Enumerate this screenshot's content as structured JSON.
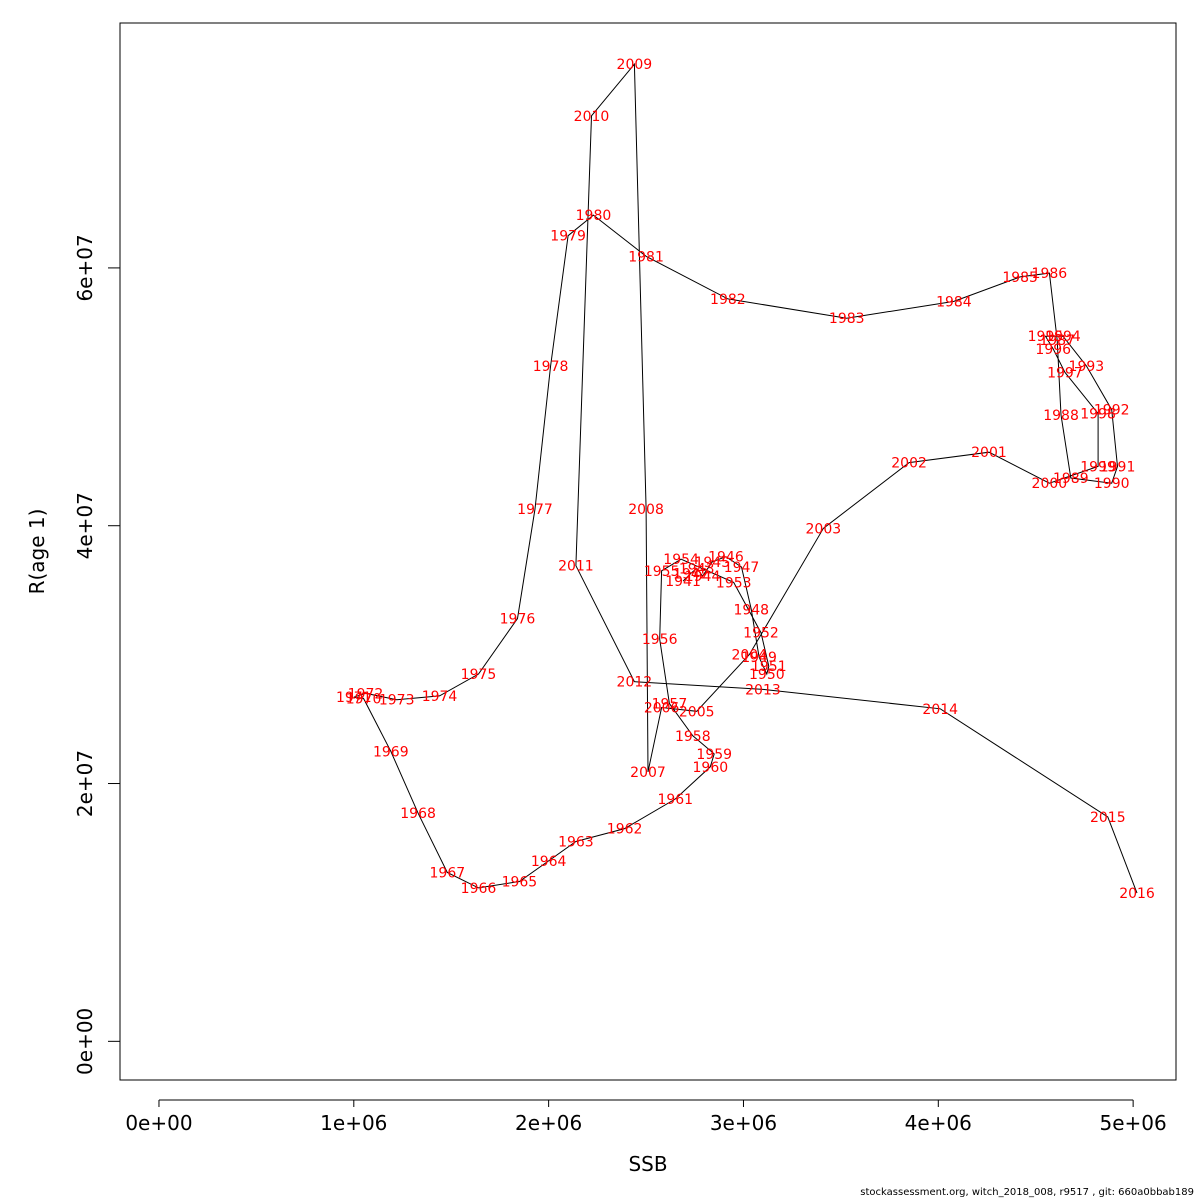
{
  "colors": {
    "label": "#ff0000",
    "line": "#000000",
    "axis": "#000000"
  },
  "footer": "stockassessment.org, witch_2018_008, r9517 , git: 660a0bbab189",
  "chart_data": {
    "type": "line",
    "title": "",
    "xlabel": "SSB",
    "ylabel": "R(age 1)",
    "xlim": [
      -200000,
      5220000
    ],
    "ylim": [
      -3000000,
      79000000
    ],
    "x_ticks": [
      0,
      1000000,
      2000000,
      3000000,
      4000000,
      5000000
    ],
    "x_tick_labels": [
      "0e+00",
      "1e+06",
      "2e+06",
      "3e+06",
      "4e+06",
      "5e+06"
    ],
    "y_ticks": [
      0,
      20000000,
      40000000,
      60000000
    ],
    "y_tick_labels": [
      "0e+00",
      "2e+07",
      "4e+07",
      "6e+07"
    ],
    "label_color": "#ff0000",
    "points": [
      {
        "year": "1941",
        "ssb": 2690000,
        "rec": 35700000
      },
      {
        "year": "1942",
        "ssb": 2730000,
        "rec": 36300000
      },
      {
        "year": "1943",
        "ssb": 2760000,
        "rec": 36700000
      },
      {
        "year": "1944",
        "ssb": 2790000,
        "rec": 36100000
      },
      {
        "year": "1945",
        "ssb": 2840000,
        "rec": 37200000
      },
      {
        "year": "1946",
        "ssb": 2910000,
        "rec": 37600000
      },
      {
        "year": "1947",
        "ssb": 2990000,
        "rec": 36800000
      },
      {
        "year": "1948",
        "ssb": 3040000,
        "rec": 33500000
      },
      {
        "year": "1949",
        "ssb": 3080000,
        "rec": 29800000
      },
      {
        "year": "1950",
        "ssb": 3120000,
        "rec": 28500000
      },
      {
        "year": "1951",
        "ssb": 3130000,
        "rec": 29100000
      },
      {
        "year": "1952",
        "ssb": 3090000,
        "rec": 31700000
      },
      {
        "year": "1953",
        "ssb": 2950000,
        "rec": 35600000
      },
      {
        "year": "1954",
        "ssb": 2680000,
        "rec": 37400000
      },
      {
        "year": "1955",
        "ssb": 2580000,
        "rec": 36500000
      },
      {
        "year": "1956",
        "ssb": 2570000,
        "rec": 31200000
      },
      {
        "year": "1957",
        "ssb": 2620000,
        "rec": 26200000
      },
      {
        "year": "1958",
        "ssb": 2740000,
        "rec": 23700000
      },
      {
        "year": "1959",
        "ssb": 2850000,
        "rec": 22300000
      },
      {
        "year": "1960",
        "ssb": 2830000,
        "rec": 21300000
      },
      {
        "year": "1961",
        "ssb": 2650000,
        "rec": 18800000
      },
      {
        "year": "1962",
        "ssb": 2390000,
        "rec": 16500000
      },
      {
        "year": "1963",
        "ssb": 2140000,
        "rec": 15500000
      },
      {
        "year": "1964",
        "ssb": 2000000,
        "rec": 14000000
      },
      {
        "year": "1965",
        "ssb": 1850000,
        "rec": 12400000
      },
      {
        "year": "1966",
        "ssb": 1640000,
        "rec": 11900000
      },
      {
        "year": "1967",
        "ssb": 1480000,
        "rec": 13100000
      },
      {
        "year": "1968",
        "ssb": 1330000,
        "rec": 17700000
      },
      {
        "year": "1969",
        "ssb": 1190000,
        "rec": 22500000
      },
      {
        "year": "1970",
        "ssb": 1050000,
        "rec": 26600000
      },
      {
        "year": "1971",
        "ssb": 1000000,
        "rec": 26700000
      },
      {
        "year": "1972",
        "ssb": 1060000,
        "rec": 27000000
      },
      {
        "year": "1973",
        "ssb": 1220000,
        "rec": 26500000
      },
      {
        "year": "1974",
        "ssb": 1440000,
        "rec": 26800000
      },
      {
        "year": "1975",
        "ssb": 1640000,
        "rec": 28500000
      },
      {
        "year": "1976",
        "ssb": 1840000,
        "rec": 32800000
      },
      {
        "year": "1977",
        "ssb": 1930000,
        "rec": 41300000
      },
      {
        "year": "1978",
        "ssb": 2010000,
        "rec": 52400000
      },
      {
        "year": "1979",
        "ssb": 2100000,
        "rec": 62500000
      },
      {
        "year": "1980",
        "ssb": 2230000,
        "rec": 64100000
      },
      {
        "year": "1981",
        "ssb": 2500000,
        "rec": 60900000
      },
      {
        "year": "1982",
        "ssb": 2920000,
        "rec": 57600000
      },
      {
        "year": "1983",
        "ssb": 3530000,
        "rec": 56100000
      },
      {
        "year": "1984",
        "ssb": 4080000,
        "rec": 57400000
      },
      {
        "year": "1985",
        "ssb": 4420000,
        "rec": 59300000
      },
      {
        "year": "1986",
        "ssb": 4570000,
        "rec": 59600000
      },
      {
        "year": "1987",
        "ssb": 4610000,
        "rec": 54400000
      },
      {
        "year": "1988",
        "ssb": 4630000,
        "rec": 48600000
      },
      {
        "year": "1989",
        "ssb": 4680000,
        "rec": 43700000
      },
      {
        "year": "1990",
        "ssb": 4890000,
        "rec": 43300000
      },
      {
        "year": "1991",
        "ssb": 4920000,
        "rec": 44600000
      },
      {
        "year": "1992",
        "ssb": 4890000,
        "rec": 49000000
      },
      {
        "year": "1993",
        "ssb": 4760000,
        "rec": 52400000
      },
      {
        "year": "1994",
        "ssb": 4640000,
        "rec": 54700000
      },
      {
        "year": "1995",
        "ssb": 4550000,
        "rec": 54700000
      },
      {
        "year": "1996",
        "ssb": 4590000,
        "rec": 53700000
      },
      {
        "year": "1997",
        "ssb": 4650000,
        "rec": 51900000
      },
      {
        "year": "1998",
        "ssb": 4820000,
        "rec": 48700000
      },
      {
        "year": "1999",
        "ssb": 4820000,
        "rec": 44600000
      },
      {
        "year": "2000",
        "ssb": 4570000,
        "rec": 43300000
      },
      {
        "year": "2001",
        "ssb": 4260000,
        "rec": 45700000
      },
      {
        "year": "2002",
        "ssb": 3850000,
        "rec": 44900000
      },
      {
        "year": "2003",
        "ssb": 3410000,
        "rec": 39800000
      },
      {
        "year": "2004",
        "ssb": 3030000,
        "rec": 30000000
      },
      {
        "year": "2005",
        "ssb": 2760000,
        "rec": 25600000
      },
      {
        "year": "2006",
        "ssb": 2580000,
        "rec": 25900000
      },
      {
        "year": "2007",
        "ssb": 2510000,
        "rec": 20900000
      },
      {
        "year": "2008",
        "ssb": 2500000,
        "rec": 41300000
      },
      {
        "year": "2009",
        "ssb": 2440000,
        "rec": 75800000
      },
      {
        "year": "2010",
        "ssb": 2220000,
        "rec": 71800000
      },
      {
        "year": "2011",
        "ssb": 2140000,
        "rec": 36900000
      },
      {
        "year": "2012",
        "ssb": 2440000,
        "rec": 27900000
      },
      {
        "year": "2013",
        "ssb": 3100000,
        "rec": 27300000
      },
      {
        "year": "2014",
        "ssb": 4010000,
        "rec": 25800000
      },
      {
        "year": "2015",
        "ssb": 4870000,
        "rec": 17400000
      },
      {
        "year": "2016",
        "ssb": 5020000,
        "rec": 11500000
      }
    ]
  }
}
